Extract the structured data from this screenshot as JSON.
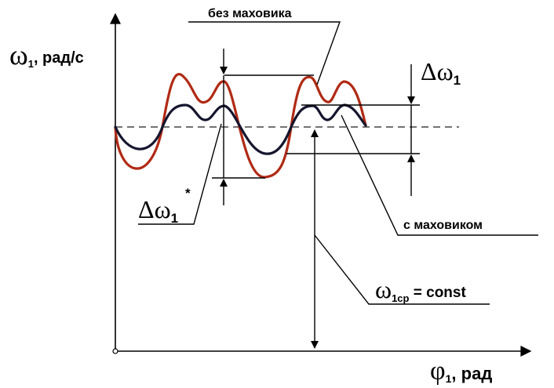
{
  "axes": {
    "y_symbol": "ω",
    "y_subscript": "1",
    "y_unit": ", рад/с",
    "x_symbol": "φ",
    "x_subscript": "1",
    "x_unit": ", рад"
  },
  "labels": {
    "without_flywheel": "без маховика",
    "with_flywheel": "с маховиком",
    "delta_omega_symbol": "Δω",
    "delta_omega_subscript": "1",
    "delta_omega_star_symbol": "Δω",
    "delta_omega_star_subscript": "1",
    "delta_omega_star_superscript": "*",
    "omega_avg_symbol": "ω",
    "omega_avg_subscript": "1ср",
    "omega_avg_rest": " = const"
  },
  "colors": {
    "curve_without_flywheel": "#b02a14",
    "curve_with_flywheel": "#15152e",
    "axes": "#000000",
    "dashed_mean": "#444444"
  }
}
